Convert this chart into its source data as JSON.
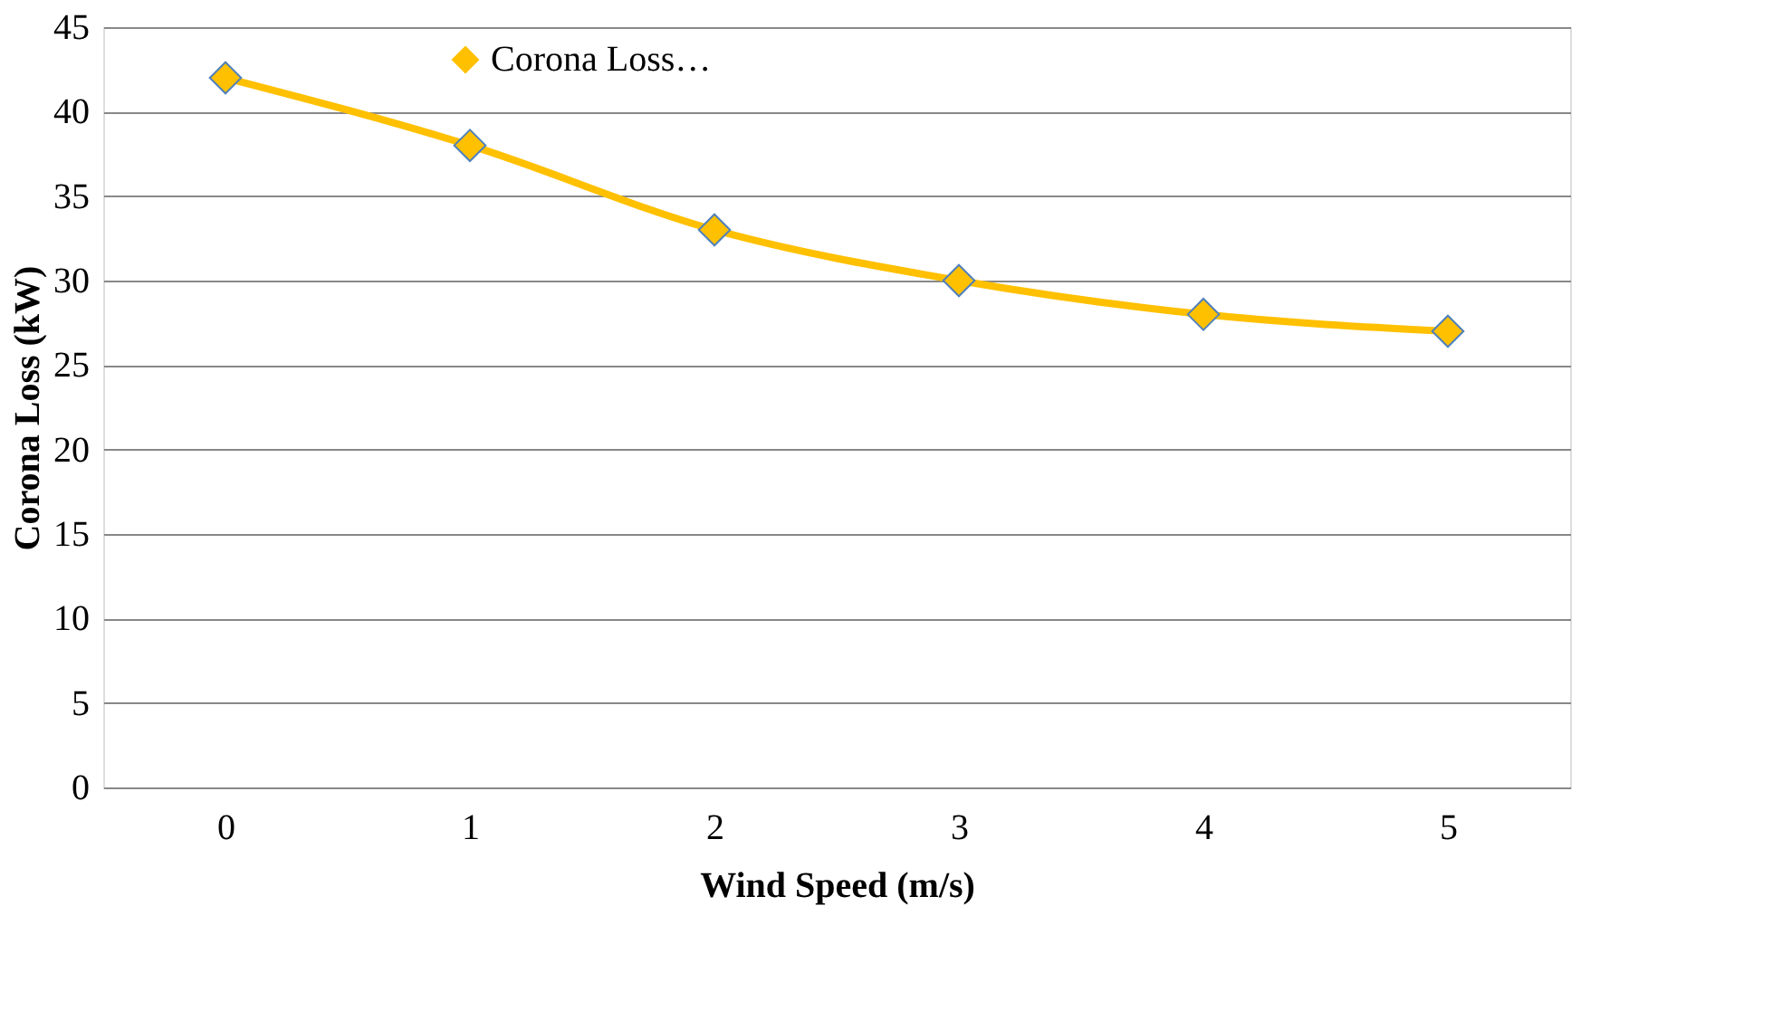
{
  "chart_data": {
    "type": "line",
    "xlabel": "Wind Speed (m/s)",
    "ylabel": "Corona Loss (kW)",
    "categories": [
      "0",
      "1",
      "2",
      "3",
      "4",
      "5"
    ],
    "series": [
      {
        "name": "Corona Loss…",
        "color": "#ffc000",
        "values": [
          42,
          38,
          33,
          30,
          28,
          27
        ]
      }
    ],
    "ylim": [
      0,
      45
    ],
    "yticks": [
      0,
      5,
      10,
      15,
      20,
      25,
      30,
      35,
      40,
      45
    ],
    "grid": "y",
    "legend": "top left",
    "marker": "diamond",
    "line_style": "solid"
  }
}
